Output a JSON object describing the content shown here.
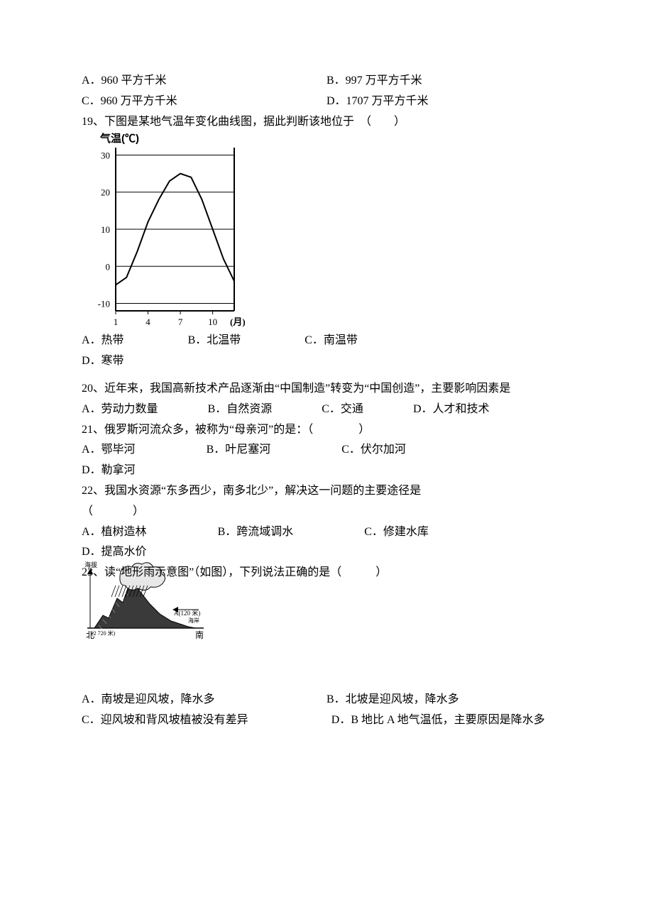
{
  "q18": {
    "opts": {
      "A": "A．960 平方千米",
      "B": "B．997 万平方千米",
      "C": "C．960 万平方千米",
      "D": "D．1707 万平方千米"
    }
  },
  "q19": {
    "stem": "19、下图是某地气温年变化曲线图，据此判断该地位于　（　　）",
    "chart": {
      "type": "line",
      "title": "气温(℃)",
      "x_axis_label_suffix": "(月)",
      "x_ticks": [
        1,
        4,
        7,
        10
      ],
      "y_ticks": [
        -10,
        0,
        10,
        20,
        30
      ],
      "y_min": -12,
      "y_max": 32,
      "line_color": "#000000",
      "line_width": 2,
      "axis_color": "#000000",
      "grid_color": "#000000",
      "background_color": "#ffffff",
      "tick_fontsize": 13,
      "title_fontsize": 15,
      "points": [
        {
          "x": 1,
          "y": -5
        },
        {
          "x": 2,
          "y": -3
        },
        {
          "x": 3,
          "y": 4
        },
        {
          "x": 4,
          "y": 12
        },
        {
          "x": 5,
          "y": 18
        },
        {
          "x": 6,
          "y": 23
        },
        {
          "x": 7,
          "y": 25
        },
        {
          "x": 8,
          "y": 24
        },
        {
          "x": 9,
          "y": 18
        },
        {
          "x": 10,
          "y": 10
        },
        {
          "x": 11,
          "y": 2
        },
        {
          "x": 12,
          "y": -4
        }
      ]
    },
    "opts": {
      "A": "A．热带",
      "B": "B．北温带",
      "C": "C．南温带",
      "D": "D．寒带"
    }
  },
  "q20": {
    "stem": "20、近年来，我国高新技术产品逐渐由“中国制造”转变为“中国创造”，主要影响因素是",
    "opts": {
      "A": "A．劳动力数量",
      "B": "B．自然资源",
      "C": "C．交通",
      "D": "D．人才和技术"
    }
  },
  "q21": {
    "stem": "21、俄罗斯河流众多，被称为“母亲河”的是：（　　　　）",
    "opts": {
      "A": "A．鄂毕河",
      "B": "B．叶尼塞河",
      "C": "C．伏尔加河",
      "D": "D．勒拿河"
    }
  },
  "q22": {
    "stem1": "22、我国水资源“东多西少，南多北少”，解决这一问题的主要途径是",
    "stem2": "（　　　）",
    "opts": {
      "A": "A．植树造林",
      "B": "B．跨流域调水",
      "C": "C．修建水库",
      "D": "D．提高水价"
    }
  },
  "q23": {
    "stem": "23、读“地形雨示意图”（如图），下列说法正确的是（　　　）",
    "figure": {
      "type": "infographic",
      "label_altitude": "海拔",
      "label_north": "北",
      "label_south": "南",
      "label_A": "A(120 米)",
      "label_B_altitude": "(2 720 米)",
      "label_coast": "海岸",
      "mountain_fill": "#3a3a3a",
      "cloud_fill": "#e8e8e8",
      "cloud_stroke": "#000000",
      "rain_color": "#000000",
      "text_color": "#000000",
      "background_color": "#ffffff",
      "font_size": 9
    },
    "opts": {
      "A": "A．南坡是迎风坡，降水多",
      "B": "B．北坡是迎风坡，降水多",
      "C": "C．迎风坡和背风坡植被没有差异",
      "D": "D．B 地比 A 地气温低，主要原因是降水多"
    }
  }
}
